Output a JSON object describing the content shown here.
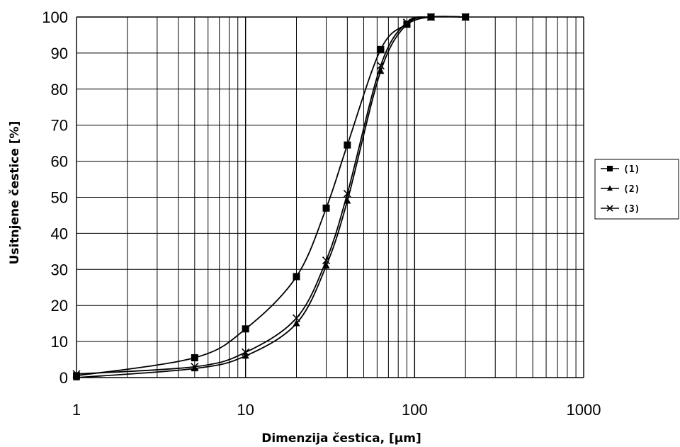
{
  "chart_data": {
    "type": "line",
    "xscale": "log",
    "xlim": [
      1,
      1000
    ],
    "ylim": [
      0,
      100
    ],
    "xlabel": "Dimenzija čestica, [µm]",
    "ylabel": "Usitnjene čestice [%]",
    "xticks": [
      "1",
      "10",
      "100",
      "1000"
    ],
    "yticks": [
      "0",
      "10",
      "20",
      "30",
      "40",
      "50",
      "60",
      "70",
      "80",
      "90",
      "100"
    ],
    "grid": true,
    "legend_position": "right",
    "series": [
      {
        "name": "(1)",
        "marker": "square",
        "points": [
          [
            1,
            0.5
          ],
          [
            5,
            5.5
          ],
          [
            10,
            13.5
          ],
          [
            20,
            28
          ],
          [
            30,
            47
          ],
          [
            40,
            64.5
          ],
          [
            63,
            91
          ],
          [
            90,
            98
          ],
          [
            125,
            100
          ],
          [
            200,
            100
          ]
        ]
      },
      {
        "name": "(2)",
        "marker": "triangle",
        "points": [
          [
            1,
            0
          ],
          [
            5,
            2.5
          ],
          [
            10,
            6
          ],
          [
            20,
            15
          ],
          [
            30,
            31
          ],
          [
            40,
            49
          ],
          [
            63,
            85
          ],
          [
            90,
            98
          ],
          [
            125,
            100
          ],
          [
            200,
            100
          ]
        ]
      },
      {
        "name": "(3)",
        "marker": "x",
        "points": [
          [
            1,
            1
          ],
          [
            5,
            3
          ],
          [
            10,
            7
          ],
          [
            20,
            16.5
          ],
          [
            30,
            32.5
          ],
          [
            40,
            51
          ],
          [
            63,
            86.5
          ],
          [
            90,
            98.5
          ],
          [
            125,
            100
          ],
          [
            200,
            100
          ]
        ]
      }
    ]
  }
}
